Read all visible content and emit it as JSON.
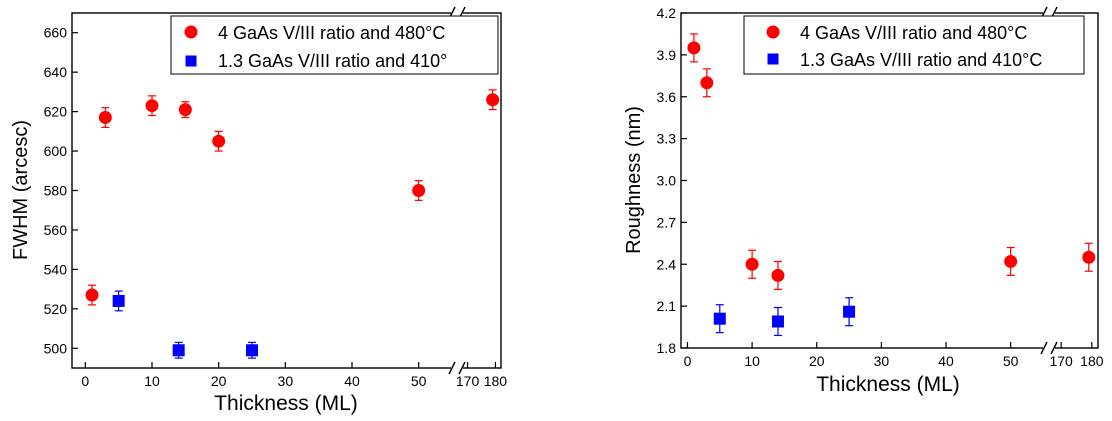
{
  "chart_data": [
    {
      "type": "scatter",
      "xlabel": "Thickness (ML)",
      "ylabel": "FWHM (arcesc)",
      "ylim": [
        490,
        670
      ],
      "yticks": [
        500,
        520,
        540,
        560,
        580,
        600,
        620,
        640,
        660
      ],
      "xaxis_segments": [
        {
          "range": [
            -2,
            55
          ],
          "ticks": [
            0,
            10,
            20,
            30,
            40,
            50
          ]
        },
        {
          "range": [
            168,
            182
          ],
          "ticks": [
            170,
            180
          ]
        }
      ],
      "legend_position": "top-right",
      "series": [
        {
          "name": "4 GaAs V/III ratio and 480°C",
          "marker": "circle",
          "color": "#ff0000",
          "points": [
            {
              "x": 1,
              "y": 527,
              "err": 5
            },
            {
              "x": 3,
              "y": 617,
              "err": 5
            },
            {
              "x": 10,
              "y": 623,
              "err": 5
            },
            {
              "x": 15,
              "y": 621,
              "err": 4
            },
            {
              "x": 20,
              "y": 605,
              "err": 5
            },
            {
              "x": 50,
              "y": 580,
              "err": 5
            },
            {
              "x": 179,
              "y": 626,
              "err": 5
            }
          ]
        },
        {
          "name": "1.3 GaAs V/III ratio and 410°",
          "marker": "square",
          "color": "#0000ff",
          "points": [
            {
              "x": 5,
              "y": 524,
              "err": 5
            },
            {
              "x": 14,
              "y": 499,
              "err": 4
            },
            {
              "x": 25,
              "y": 499,
              "err": 4
            }
          ]
        }
      ]
    },
    {
      "type": "scatter",
      "xlabel": "Thickness (ML)",
      "ylabel": "Roughness (nm)",
      "ylim": [
        1.8,
        4.2
      ],
      "yticks": [
        1.8,
        2.1,
        2.4,
        2.7,
        3.0,
        3.3,
        3.6,
        3.9,
        4.2
      ],
      "ytick_labels": [
        "1.8",
        "2.1",
        "2.4",
        "2.7",
        "3.0",
        "3.3",
        "3.6",
        "3.9",
        "4.2"
      ],
      "xaxis_segments": [
        {
          "range": [
            -1,
            55
          ],
          "ticks": [
            0,
            10,
            20,
            30,
            40,
            50
          ]
        },
        {
          "range": [
            168,
            182
          ],
          "ticks": [
            170,
            180
          ]
        }
      ],
      "legend_position": "top-right",
      "series": [
        {
          "name": "4 GaAs V/III ratio and 480°C",
          "marker": "circle",
          "color": "#ff0000",
          "points": [
            {
              "x": 1,
              "y": 3.95,
              "err": 0.1
            },
            {
              "x": 3,
              "y": 3.7,
              "err": 0.1
            },
            {
              "x": 10,
              "y": 2.4,
              "err": 0.1
            },
            {
              "x": 14,
              "y": 2.32,
              "err": 0.1
            },
            {
              "x": 50,
              "y": 2.42,
              "err": 0.1
            },
            {
              "x": 179,
              "y": 2.45,
              "err": 0.1
            }
          ]
        },
        {
          "name": "1.3 GaAs V/III ratio and 410°C",
          "marker": "square",
          "color": "#0000ff",
          "points": [
            {
              "x": 5,
              "y": 2.01,
              "err": 0.1
            },
            {
              "x": 14,
              "y": 1.99,
              "err": 0.1
            },
            {
              "x": 25,
              "y": 2.06,
              "err": 0.1
            }
          ]
        }
      ]
    }
  ]
}
